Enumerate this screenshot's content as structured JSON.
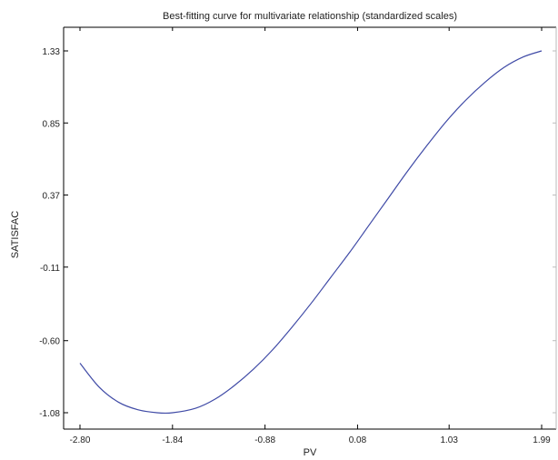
{
  "chart_data": {
    "type": "line",
    "title": "Best-fitting curve for multivariate relationship (standardized scales)",
    "xlabel": "PV",
    "ylabel": "SATISFAC",
    "x_ticks": [
      "-2.80",
      "-1.84",
      "-0.88",
      "0.08",
      "1.03",
      "1.99"
    ],
    "y_ticks": [
      "1.33",
      "0.85",
      "0.37",
      "-0.11",
      "-0.60",
      "-1.08"
    ],
    "xlim": [
      -2.8,
      1.99
    ],
    "ylim": [
      -1.08,
      1.33
    ],
    "grid": false,
    "series": [
      {
        "color": "#3f4aa6",
        "x": [
          -2.8,
          -2.6,
          -2.4,
          -2.2,
          -2.0,
          -1.84,
          -1.6,
          -1.4,
          -1.2,
          -1.0,
          -0.8,
          -0.6,
          -0.4,
          -0.2,
          0.0,
          0.2,
          0.4,
          0.6,
          0.8,
          1.0,
          1.2,
          1.4,
          1.6,
          1.8,
          1.99
        ],
        "y": [
          -0.75,
          -0.91,
          -1.01,
          -1.06,
          -1.08,
          -1.08,
          -1.05,
          -0.99,
          -0.9,
          -0.79,
          -0.66,
          -0.51,
          -0.35,
          -0.18,
          -0.01,
          0.17,
          0.35,
          0.53,
          0.7,
          0.86,
          1.0,
          1.12,
          1.22,
          1.29,
          1.33
        ]
      }
    ]
  }
}
